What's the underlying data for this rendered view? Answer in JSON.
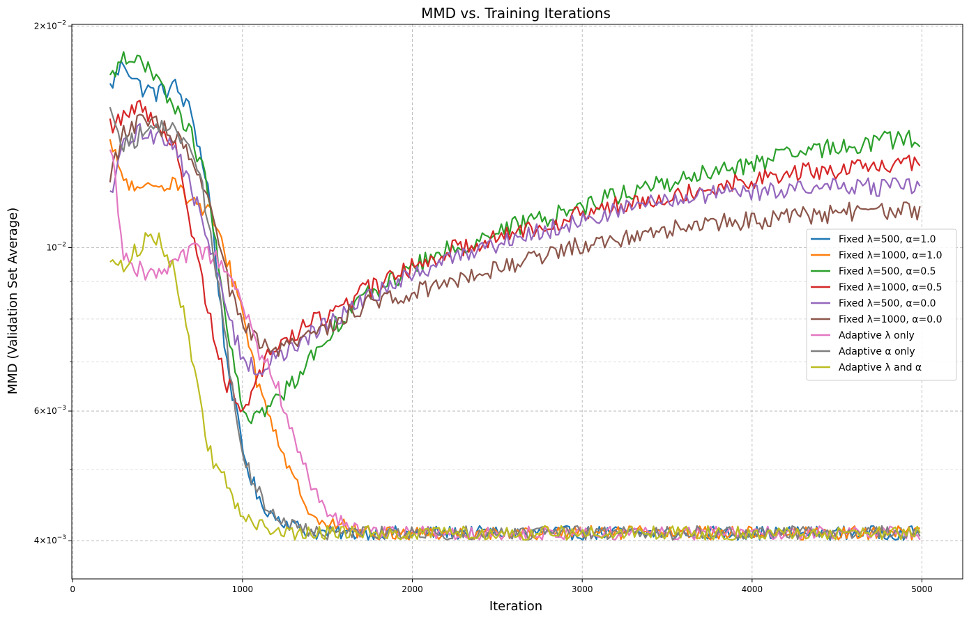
{
  "chart_data": {
    "type": "line",
    "title": "MMD vs. Training Iterations",
    "xlabel": "Iteration",
    "ylabel": "MMD (Validation Set Average)",
    "xlim": [
      -5,
      5240
    ],
    "ylim": [
      0.00355,
      0.0201
    ],
    "yscale": "log",
    "grid": true,
    "legend_position": "center-right",
    "x_ticks": [
      0,
      1000,
      2000,
      3000,
      4000,
      5000
    ],
    "x_tick_labels": [
      "0",
      "1000",
      "2000",
      "3000",
      "4000",
      "5000"
    ],
    "y_ticks": [
      0.004,
      0.006,
      0.01,
      0.02
    ],
    "y_tick_labels": [
      {
        "base": "4",
        "exp": "−3"
      },
      {
        "base": "6",
        "exp": "−3"
      },
      {
        "base": "",
        "exp": "−2"
      },
      {
        "base": "2",
        "exp": "−2"
      }
    ],
    "x": [
      220,
      300,
      400,
      500,
      600,
      700,
      800,
      900,
      1000,
      1100,
      1200,
      1300,
      1400,
      1500,
      1600,
      1700,
      1800,
      1900,
      2000,
      2200,
      2400,
      2600,
      2800,
      3000,
      3200,
      3400,
      3600,
      3800,
      4000,
      4200,
      4400,
      4600,
      4800,
      5000
    ],
    "series": [
      {
        "name": "Fixed λ=500, α=1.0",
        "color": "#1f77b4",
        "values": [
          0.0165,
          0.0179,
          0.0165,
          0.0162,
          0.0166,
          0.0152,
          0.012,
          0.0072,
          0.0053,
          0.0045,
          0.0043,
          0.0042,
          0.0041,
          0.0041,
          0.0041,
          0.0041,
          0.0041,
          0.0041,
          0.0041,
          0.0041,
          0.0041,
          0.0041,
          0.0041,
          0.0041,
          0.0041,
          0.0041,
          0.0041,
          0.0041,
          0.0041,
          0.0041,
          0.0041,
          0.0041,
          0.0041,
          0.0041
        ]
      },
      {
        "name": "Fixed λ=1000, α=1.0",
        "color": "#ff7f0e",
        "values": [
          0.0138,
          0.0124,
          0.0118,
          0.0122,
          0.0124,
          0.0115,
          0.0112,
          0.0098,
          0.0082,
          0.0064,
          0.0056,
          0.0048,
          0.0044,
          0.0042,
          0.0042,
          0.0041,
          0.0041,
          0.0041,
          0.0041,
          0.0041,
          0.0041,
          0.0041,
          0.0041,
          0.0041,
          0.0041,
          0.0041,
          0.0041,
          0.0041,
          0.0041,
          0.0041,
          0.0041,
          0.0041,
          0.0041,
          0.0041
        ]
      },
      {
        "name": "Fixed λ=500, α=0.5",
        "color": "#2ca02c",
        "values": [
          0.0168,
          0.0184,
          0.0178,
          0.0168,
          0.0155,
          0.0142,
          0.012,
          0.0079,
          0.006,
          0.0059,
          0.0062,
          0.0066,
          0.0071,
          0.0076,
          0.0081,
          0.0085,
          0.0088,
          0.0091,
          0.0094,
          0.0099,
          0.0103,
          0.0107,
          0.011,
          0.0114,
          0.0118,
          0.0121,
          0.0124,
          0.0127,
          0.013,
          0.0133,
          0.0136,
          0.0138,
          0.014,
          0.0141
        ]
      },
      {
        "name": "Fixed λ=1000, α=0.5",
        "color": "#d62728",
        "values": [
          0.0146,
          0.0152,
          0.0155,
          0.0148,
          0.0138,
          0.0106,
          0.0082,
          0.0066,
          0.006,
          0.0068,
          0.0074,
          0.0076,
          0.0079,
          0.0081,
          0.0084,
          0.0087,
          0.0089,
          0.0092,
          0.0094,
          0.0099,
          0.0102,
          0.0105,
          0.0108,
          0.0111,
          0.0114,
          0.0117,
          0.0119,
          0.0121,
          0.0124,
          0.0126,
          0.0127,
          0.0128,
          0.0129,
          0.0131
        ]
      },
      {
        "name": "Fixed λ=500, α=0.0",
        "color": "#9467bd",
        "values": [
          0.0116,
          0.0138,
          0.0144,
          0.0142,
          0.0138,
          0.012,
          0.0102,
          0.0083,
          0.0071,
          0.0068,
          0.0071,
          0.0073,
          0.0076,
          0.0079,
          0.0082,
          0.0084,
          0.0087,
          0.0089,
          0.0092,
          0.0096,
          0.01,
          0.0103,
          0.0106,
          0.0109,
          0.0112,
          0.0115,
          0.0117,
          0.0118,
          0.0119,
          0.012,
          0.0121,
          0.0121,
          0.0121,
          0.0121
        ]
      },
      {
        "name": "Fixed λ=1000, α=0.0",
        "color": "#8c564b",
        "values": [
          0.0126,
          0.0143,
          0.0148,
          0.0147,
          0.0142,
          0.0131,
          0.0116,
          0.0092,
          0.0078,
          0.0074,
          0.0072,
          0.0074,
          0.0076,
          0.0078,
          0.0081,
          0.0083,
          0.0085,
          0.0086,
          0.0087,
          0.009,
          0.0093,
          0.0095,
          0.0098,
          0.0101,
          0.0103,
          0.0105,
          0.0107,
          0.0108,
          0.0109,
          0.011,
          0.0111,
          0.0112,
          0.0112,
          0.0112
        ]
      },
      {
        "name": "Adaptive λ only",
        "color": "#e377c2",
        "values": [
          0.0139,
          0.0099,
          0.0093,
          0.0092,
          0.0094,
          0.0099,
          0.0098,
          0.0094,
          0.0083,
          0.0072,
          0.0066,
          0.0055,
          0.0048,
          0.0044,
          0.0042,
          0.0041,
          0.0041,
          0.0041,
          0.0041,
          0.0041,
          0.0041,
          0.0041,
          0.0041,
          0.0041,
          0.0041,
          0.0041,
          0.0041,
          0.0041,
          0.0041,
          0.0041,
          0.0041,
          0.0041,
          0.0041,
          0.0041
        ]
      },
      {
        "name": "Adaptive α only",
        "color": "#7f7f7f",
        "values": [
          0.0158,
          0.0138,
          0.0142,
          0.0146,
          0.0145,
          0.0138,
          0.011,
          0.0075,
          0.0052,
          0.0046,
          0.0043,
          0.0042,
          0.0041,
          0.0041,
          0.0041,
          0.0041,
          0.0041,
          0.0041,
          0.0041,
          0.0041,
          0.0041,
          0.0041,
          0.0041,
          0.0041,
          0.0041,
          0.0041,
          0.0041,
          0.0041,
          0.0041,
          0.0041,
          0.0041,
          0.0041,
          0.0041,
          0.0041
        ]
      },
      {
        "name": "Adaptive λ and α",
        "color": "#bcbd22",
        "values": [
          0.0097,
          0.0094,
          0.0101,
          0.0104,
          0.0094,
          0.0071,
          0.0053,
          0.0048,
          0.0043,
          0.0042,
          0.0041,
          0.0041,
          0.0041,
          0.0041,
          0.0041,
          0.0041,
          0.0041,
          0.0041,
          0.0041,
          0.0041,
          0.0041,
          0.0041,
          0.0041,
          0.0041,
          0.0041,
          0.0041,
          0.0041,
          0.0041,
          0.0041,
          0.0041,
          0.0041,
          0.0041,
          0.0041,
          0.0041
        ]
      }
    ]
  }
}
